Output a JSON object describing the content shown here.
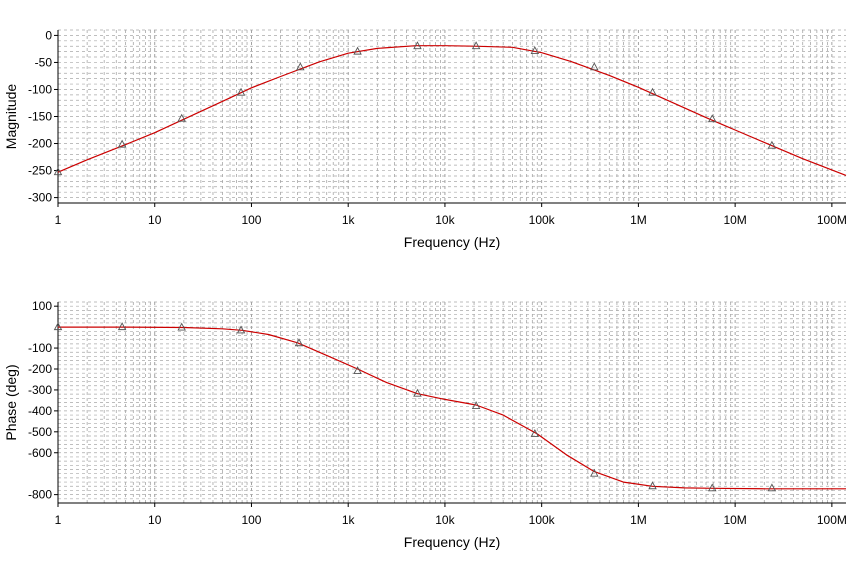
{
  "chart_data": [
    {
      "type": "line",
      "xscale": "log",
      "xlabel": "Frequency (Hz)",
      "ylabel": "Magnitude",
      "xlim": [
        1,
        140000000
      ],
      "ylim": [
        -310,
        10
      ],
      "x_ticks": [
        {
          "value": 1,
          "label": "1"
        },
        {
          "value": 10,
          "label": "10"
        },
        {
          "value": 100,
          "label": "100"
        },
        {
          "value": 1000,
          "label": "1k"
        },
        {
          "value": 10000,
          "label": "10k"
        },
        {
          "value": 100000,
          "label": "100k"
        },
        {
          "value": 1000000,
          "label": "1M"
        },
        {
          "value": 10000000,
          "label": "10M"
        },
        {
          "value": 100000000,
          "label": "100M"
        }
      ],
      "y_ticks": [
        {
          "value": 0,
          "label": "0"
        },
        {
          "value": -50,
          "label": "-50"
        },
        {
          "value": -100,
          "label": "-100"
        },
        {
          "value": -150,
          "label": "-150"
        },
        {
          "value": -200,
          "label": "-200"
        },
        {
          "value": -250,
          "label": "-250"
        },
        {
          "value": -300,
          "label": "-300"
        }
      ],
      "grid": true,
      "series": [
        {
          "color": "#cc0000",
          "marker": "triangle",
          "x": [
            1,
            2,
            5,
            10,
            20,
            50,
            100,
            200,
            500,
            1000,
            2000,
            5000,
            10000,
            20000,
            50000,
            100000,
            200000,
            500000,
            1000000,
            2000000,
            5000000,
            10000000,
            20000000,
            50000000,
            140000000
          ],
          "y": [
            -253,
            -230,
            -202,
            -180,
            -155,
            -122,
            -97,
            -76,
            -49,
            -33,
            -24,
            -19,
            -19,
            -20,
            -22,
            -32,
            -48,
            -74,
            -96,
            -120,
            -152,
            -175,
            -198,
            -228,
            -259
          ],
          "markers": [
            {
              "x": 1,
              "y": -253
            },
            {
              "x": 4.6,
              "y": -202
            },
            {
              "x": 19,
              "y": -154
            },
            {
              "x": 78,
              "y": -106
            },
            {
              "x": 320,
              "y": -59
            },
            {
              "x": 1250,
              "y": -30
            },
            {
              "x": 5200,
              "y": -20
            },
            {
              "x": 21000,
              "y": -20
            },
            {
              "x": 85000,
              "y": -29
            },
            {
              "x": 350000,
              "y": -59
            },
            {
              "x": 1400000,
              "y": -106
            },
            {
              "x": 5800000,
              "y": -155
            },
            {
              "x": 24000000,
              "y": -204
            }
          ]
        }
      ]
    },
    {
      "type": "line",
      "xscale": "log",
      "xlabel": "Frequency (Hz)",
      "ylabel": "Phase (deg)",
      "xlim": [
        1,
        140000000
      ],
      "ylim": [
        -840,
        120
      ],
      "x_ticks": [
        {
          "value": 1,
          "label": "1"
        },
        {
          "value": 10,
          "label": "10"
        },
        {
          "value": 100,
          "label": "100"
        },
        {
          "value": 1000,
          "label": "1k"
        },
        {
          "value": 10000,
          "label": "10k"
        },
        {
          "value": 100000,
          "label": "100k"
        },
        {
          "value": 1000000,
          "label": "1M"
        },
        {
          "value": 10000000,
          "label": "10M"
        },
        {
          "value": 100000000,
          "label": "100M"
        }
      ],
      "y_ticks": [
        {
          "value": 100,
          "label": "100"
        },
        {
          "value": -100,
          "label": "-100"
        },
        {
          "value": -200,
          "label": "-200"
        },
        {
          "value": -300,
          "label": "-300"
        },
        {
          "value": -400,
          "label": "-400"
        },
        {
          "value": -500,
          "label": "-500"
        },
        {
          "value": -600,
          "label": "-600"
        },
        {
          "value": -800,
          "label": "-800"
        }
      ],
      "grid": true,
      "series": [
        {
          "color": "#cc0000",
          "marker": "triangle",
          "x": [
            1,
            5,
            20,
            50,
            80,
            150,
            300,
            600,
            1250,
            2500,
            5200,
            10000,
            21000,
            40000,
            90000,
            180000,
            350000,
            700000,
            1400000,
            3000000,
            6000000,
            20000000,
            140000000
          ],
          "y": [
            0,
            0,
            -2,
            -8,
            -15,
            -35,
            -75,
            -135,
            -200,
            -265,
            -318,
            -345,
            -372,
            -420,
            -510,
            -610,
            -690,
            -740,
            -760,
            -768,
            -770,
            -772,
            -772
          ],
          "markers": [
            {
              "x": 1,
              "y": 0
            },
            {
              "x": 4.6,
              "y": 0
            },
            {
              "x": 19,
              "y": -2
            },
            {
              "x": 78,
              "y": -16
            },
            {
              "x": 310,
              "y": -77
            },
            {
              "x": 1250,
              "y": -210
            },
            {
              "x": 5200,
              "y": -318
            },
            {
              "x": 21000,
              "y": -377
            },
            {
              "x": 85000,
              "y": -510
            },
            {
              "x": 350000,
              "y": -700
            },
            {
              "x": 1400000,
              "y": -760
            },
            {
              "x": 5800000,
              "y": -770
            },
            {
              "x": 24000000,
              "y": -770
            }
          ]
        }
      ]
    }
  ]
}
